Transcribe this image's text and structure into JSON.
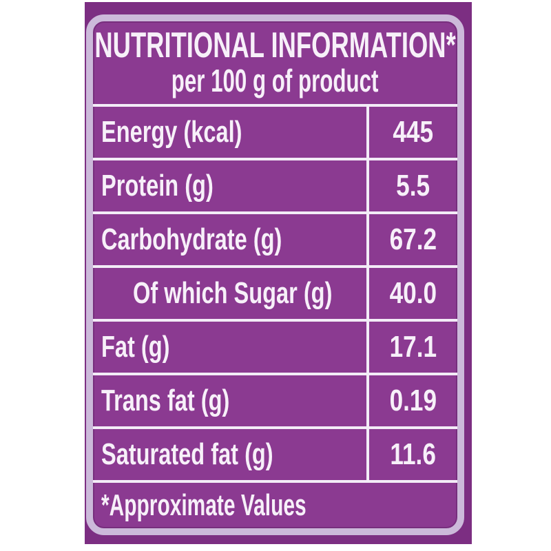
{
  "label": {
    "title": "NUTRITIONAL INFORMATION*",
    "subtitle": "per 100 g of product",
    "rows": [
      {
        "name": "Energy (kcal)",
        "value": "445"
      },
      {
        "name": "Protein (g)",
        "value": "5.5"
      },
      {
        "name": "Carbohydrate (g)",
        "value": "67.2"
      },
      {
        "name": "Of which Sugar (g)",
        "value": "40.0"
      },
      {
        "name": "Fat (g)",
        "value": "17.1"
      },
      {
        "name": "Trans fat (g)",
        "value": "0.19"
      },
      {
        "name": "Saturated fat (g)",
        "value": "11.6"
      }
    ],
    "footnote": "*Approximate Values",
    "colors": {
      "page_background": "#ffffff",
      "outer_band": "#7c2e82",
      "panel_background": "#8b3a91",
      "border": "#ccb9da",
      "divider": "#f3ecf7",
      "text": "#f7f0f9"
    }
  }
}
